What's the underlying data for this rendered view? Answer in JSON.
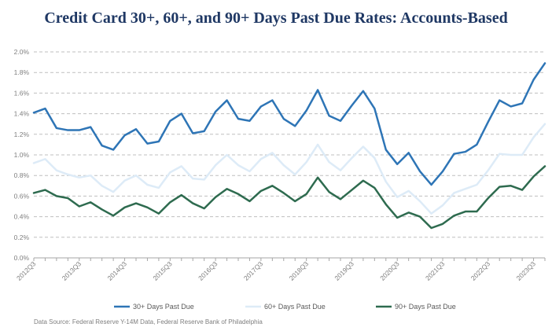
{
  "chart_data": {
    "type": "line",
    "title": "Credit Card 30+, 60+, and 90+ Days Past Due Rates: Accounts-Based",
    "xlabel": "",
    "ylabel": "",
    "ylim": [
      0,
      2.0
    ],
    "yticks": [
      "0.0%",
      "0.2%",
      "0.4%",
      "0.6%",
      "0.8%",
      "1.0%",
      "1.2%",
      "1.4%",
      "1.6%",
      "1.8%",
      "2.0%"
    ],
    "x_tick_labels": [
      "2012Q3",
      "2013Q3",
      "2014Q3",
      "2015Q3",
      "2016Q3",
      "2017Q3",
      "2018Q3",
      "2019Q3",
      "2020Q3",
      "2021Q3",
      "2022Q3",
      "2023Q3"
    ],
    "x_tick_indices": [
      0,
      4,
      8,
      12,
      16,
      20,
      24,
      28,
      32,
      36,
      40,
      44
    ],
    "grid": true,
    "legend_position": "bottom",
    "series": [
      {
        "name": "30+ Days Past Due",
        "color": "#2e75b6",
        "values": [
          1.41,
          1.45,
          1.26,
          1.24,
          1.24,
          1.27,
          1.09,
          1.05,
          1.19,
          1.25,
          1.11,
          1.13,
          1.33,
          1.4,
          1.21,
          1.23,
          1.42,
          1.53,
          1.35,
          1.33,
          1.47,
          1.53,
          1.35,
          1.28,
          1.43,
          1.63,
          1.38,
          1.33,
          1.48,
          1.62,
          1.45,
          1.05,
          0.91,
          1.02,
          0.84,
          0.71,
          0.84,
          1.01,
          1.03,
          1.1,
          1.32,
          1.53,
          1.47,
          1.5,
          1.73,
          1.89
        ]
      },
      {
        "name": "60+ Days Past Due",
        "color": "#ddebf7",
        "values": [
          0.92,
          0.96,
          0.85,
          0.81,
          0.78,
          0.8,
          0.7,
          0.64,
          0.75,
          0.8,
          0.71,
          0.68,
          0.83,
          0.89,
          0.77,
          0.76,
          0.9,
          1.0,
          0.9,
          0.84,
          0.96,
          1.02,
          0.9,
          0.81,
          0.93,
          1.1,
          0.93,
          0.85,
          0.97,
          1.08,
          0.97,
          0.74,
          0.59,
          0.65,
          0.55,
          0.43,
          0.51,
          0.63,
          0.67,
          0.71,
          0.85,
          1.01,
          1.0,
          1.0,
          1.17,
          1.3
        ]
      },
      {
        "name": "90+ Days Past Due",
        "color": "#2e6b4f",
        "values": [
          0.63,
          0.66,
          0.6,
          0.58,
          0.5,
          0.54,
          0.47,
          0.41,
          0.49,
          0.53,
          0.49,
          0.43,
          0.54,
          0.61,
          0.53,
          0.48,
          0.59,
          0.67,
          0.62,
          0.55,
          0.65,
          0.7,
          0.63,
          0.55,
          0.62,
          0.78,
          0.64,
          0.57,
          0.66,
          0.75,
          0.68,
          0.52,
          0.39,
          0.44,
          0.4,
          0.29,
          0.33,
          0.41,
          0.45,
          0.45,
          0.58,
          0.69,
          0.7,
          0.66,
          0.79,
          0.89
        ]
      }
    ],
    "source": "Data Source: Federal Reserve Y-14M Data, Federal Reserve Bank of Philadelphia"
  }
}
